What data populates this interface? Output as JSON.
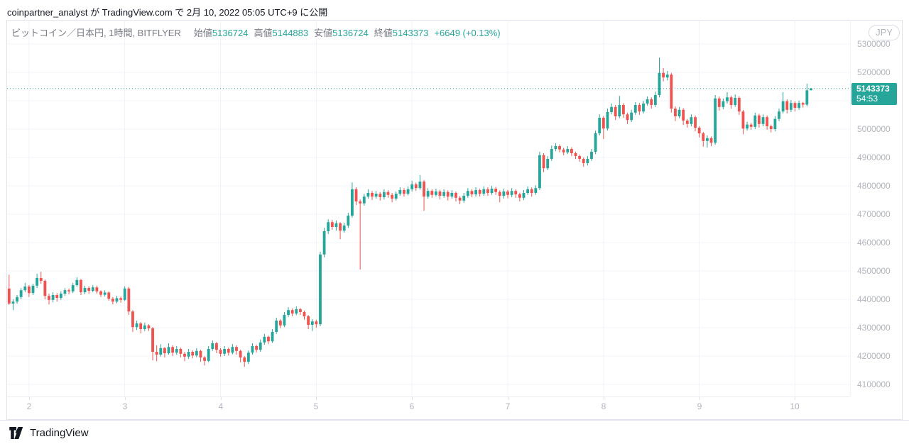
{
  "attribution": "coinpartner_analyst が TradingView.com で 2月 10, 2022 05:05 UTC+9 に公開",
  "legend": {
    "title": "ビットコイン／日本円, 1時間, BITFLYER",
    "fields": [
      {
        "label": "始値",
        "value": "5136724"
      },
      {
        "label": "高値",
        "value": "5144883"
      },
      {
        "label": "安値",
        "value": "5136724"
      },
      {
        "label": "終値",
        "value": "5143373"
      }
    ],
    "change": "+6649 (+0.13%)"
  },
  "price_scale": {
    "currency": "JPY",
    "last": {
      "price": "5143373",
      "countdown": "54:53"
    }
  },
  "footer": {
    "brand": "TradingView"
  },
  "colors": {
    "up": "#26a69a",
    "down": "#ef5350",
    "grid": "#f0f3fa",
    "axis_text": "#b2b5be",
    "frame": "#e0e3eb",
    "label_bg": "#26a69a",
    "text_dark": "#131722",
    "text_gray": "#787b86"
  },
  "chart_data": {
    "type": "candlestick",
    "title": "ビットコイン／日本円, 1時間, BITFLYER",
    "symbol": "ビットコイン／日本円",
    "interval": "1時間",
    "exchange": "BITFLYER",
    "ylabel": "JPY",
    "ohlc_current": {
      "open": 5136724,
      "high": 5144883,
      "low": 5136724,
      "close": 5143373,
      "change": 6649,
      "change_pct": 0.13
    },
    "last_price": 5143373,
    "ylim": [
      4057500,
      5385000
    ],
    "yticks": [
      4100000,
      4200000,
      4300000,
      4400000,
      4500000,
      4600000,
      4700000,
      4800000,
      4900000,
      5000000,
      5100000,
      5200000,
      5300000
    ],
    "xticks_days": [
      "2",
      "3",
      "4",
      "5",
      "6",
      "7",
      "8",
      "9",
      "10"
    ],
    "layout": {
      "bars_per_day": 24,
      "first_day_bar": 5,
      "right_pad_bars": 9.3,
      "grid": true
    },
    "candles": [
      [
        4438000,
        4487000,
        4380000,
        4385000
      ],
      [
        4385000,
        4400000,
        4362000,
        4392000
      ],
      [
        4392000,
        4415000,
        4385000,
        4408000
      ],
      [
        4408000,
        4440000,
        4400000,
        4432000
      ],
      [
        4432000,
        4458000,
        4425000,
        4445000
      ],
      [
        4445000,
        4450000,
        4408000,
        4422000
      ],
      [
        4422000,
        4455000,
        4415000,
        4448000
      ],
      [
        4448000,
        4490000,
        4440000,
        4475000
      ],
      [
        4475000,
        4497000,
        4455000,
        4465000
      ],
      [
        4465000,
        4470000,
        4400000,
        4412000
      ],
      [
        4412000,
        4420000,
        4382000,
        4398000
      ],
      [
        4398000,
        4425000,
        4390000,
        4415000
      ],
      [
        4415000,
        4422000,
        4392000,
        4405000
      ],
      [
        4405000,
        4428000,
        4398000,
        4420000
      ],
      [
        4420000,
        4440000,
        4412000,
        4432000
      ],
      [
        4432000,
        4438000,
        4418000,
        4428000
      ],
      [
        4428000,
        4458000,
        4422000,
        4450000
      ],
      [
        4450000,
        4478000,
        4445000,
        4468000
      ],
      [
        4468000,
        4472000,
        4415000,
        4425000
      ],
      [
        4425000,
        4448000,
        4418000,
        4440000
      ],
      [
        4440000,
        4446000,
        4420000,
        4430000
      ],
      [
        4430000,
        4450000,
        4425000,
        4442000
      ],
      [
        4442000,
        4448000,
        4420000,
        4428000
      ],
      [
        4428000,
        4432000,
        4408000,
        4416000
      ],
      [
        4416000,
        4432000,
        4410000,
        4424000
      ],
      [
        4424000,
        4428000,
        4395000,
        4402000
      ],
      [
        4402000,
        4408000,
        4382000,
        4392000
      ],
      [
        4392000,
        4412000,
        4386000,
        4404000
      ],
      [
        4404000,
        4410000,
        4388000,
        4398000
      ],
      [
        4398000,
        4446000,
        4394000,
        4438000
      ],
      [
        4438000,
        4444000,
        4345000,
        4357000
      ],
      [
        4357000,
        4362000,
        4285000,
        4302000
      ],
      [
        4302000,
        4325000,
        4292000,
        4315000
      ],
      [
        4315000,
        4320000,
        4280000,
        4295000
      ],
      [
        4295000,
        4318000,
        4288000,
        4308000
      ],
      [
        4308000,
        4312000,
        4288000,
        4298000
      ],
      [
        4298000,
        4302000,
        4185000,
        4215000
      ],
      [
        4215000,
        4238000,
        4182000,
        4205000
      ],
      [
        4205000,
        4242000,
        4198000,
        4228000
      ],
      [
        4228000,
        4232000,
        4195000,
        4210000
      ],
      [
        4210000,
        4245000,
        4205000,
        4232000
      ],
      [
        4232000,
        4238000,
        4200000,
        4212000
      ],
      [
        4212000,
        4235000,
        4205000,
        4225000
      ],
      [
        4225000,
        4230000,
        4195000,
        4208000
      ],
      [
        4208000,
        4215000,
        4182000,
        4198000
      ],
      [
        4198000,
        4225000,
        4190000,
        4215000
      ],
      [
        4215000,
        4220000,
        4192000,
        4202000
      ],
      [
        4202000,
        4228000,
        4196000,
        4218000
      ],
      [
        4218000,
        4222000,
        4180000,
        4195000
      ],
      [
        4195000,
        4200000,
        4167000,
        4183000
      ],
      [
        4183000,
        4235000,
        4178000,
        4225000
      ],
      [
        4225000,
        4255000,
        4218000,
        4245000
      ],
      [
        4245000,
        4250000,
        4210000,
        4222000
      ],
      [
        4222000,
        4228000,
        4198000,
        4208000
      ],
      [
        4208000,
        4235000,
        4200000,
        4225000
      ],
      [
        4225000,
        4230000,
        4202000,
        4212000
      ],
      [
        4212000,
        4242000,
        4206000,
        4232000
      ],
      [
        4232000,
        4238000,
        4205000,
        4218000
      ],
      [
        4218000,
        4222000,
        4178000,
        4195000
      ],
      [
        4195000,
        4200000,
        4162000,
        4180000
      ],
      [
        4180000,
        4220000,
        4172000,
        4212000
      ],
      [
        4212000,
        4245000,
        4205000,
        4235000
      ],
      [
        4235000,
        4240000,
        4212000,
        4222000
      ],
      [
        4222000,
        4258000,
        4215000,
        4248000
      ],
      [
        4248000,
        4278000,
        4240000,
        4268000
      ],
      [
        4268000,
        4272000,
        4242000,
        4252000
      ],
      [
        4252000,
        4295000,
        4246000,
        4285000
      ],
      [
        4285000,
        4335000,
        4278000,
        4325000
      ],
      [
        4325000,
        4330000,
        4298000,
        4308000
      ],
      [
        4308000,
        4355000,
        4302000,
        4345000
      ],
      [
        4345000,
        4372000,
        4338000,
        4362000
      ],
      [
        4362000,
        4368000,
        4340000,
        4350000
      ],
      [
        4350000,
        4375000,
        4344000,
        4365000
      ],
      [
        4365000,
        4370000,
        4345000,
        4355000
      ],
      [
        4355000,
        4360000,
        4328000,
        4340000
      ],
      [
        4340000,
        4345000,
        4295000,
        4310000
      ],
      [
        4310000,
        4330000,
        4288000,
        4322000
      ],
      [
        4322000,
        4328000,
        4300000,
        4312000
      ],
      [
        4312000,
        4568000,
        4305000,
        4558000
      ],
      [
        4558000,
        4652000,
        4548000,
        4640000
      ],
      [
        4640000,
        4682000,
        4630000,
        4672000
      ],
      [
        4672000,
        4680000,
        4645000,
        4655000
      ],
      [
        4655000,
        4678000,
        4642000,
        4668000
      ],
      [
        4668000,
        4672000,
        4612000,
        4642000
      ],
      [
        4642000,
        4670000,
        4635000,
        4660000
      ],
      [
        4660000,
        4705000,
        4652000,
        4695000
      ],
      [
        4695000,
        4812000,
        4688000,
        4788000
      ],
      [
        4788000,
        4795000,
        4732000,
        4745000
      ],
      [
        4745000,
        4752000,
        4505000,
        4738000
      ],
      [
        4738000,
        4772000,
        4730000,
        4762000
      ],
      [
        4762000,
        4788000,
        4755000,
        4775000
      ],
      [
        4775000,
        4782000,
        4750000,
        4762000
      ],
      [
        4762000,
        4782000,
        4755000,
        4772000
      ],
      [
        4772000,
        4778000,
        4748000,
        4760000
      ],
      [
        4760000,
        4788000,
        4752000,
        4778000
      ],
      [
        4778000,
        4785000,
        4758000,
        4768000
      ],
      [
        4768000,
        4775000,
        4742000,
        4755000
      ],
      [
        4755000,
        4780000,
        4748000,
        4772000
      ],
      [
        4772000,
        4795000,
        4765000,
        4785000
      ],
      [
        4785000,
        4792000,
        4762000,
        4772000
      ],
      [
        4772000,
        4798000,
        4766000,
        4788000
      ],
      [
        4788000,
        4818000,
        4780000,
        4805000
      ],
      [
        4805000,
        4812000,
        4782000,
        4792000
      ],
      [
        4792000,
        4838000,
        4786000,
        4815000
      ],
      [
        4815000,
        4820000,
        4712000,
        4762000
      ],
      [
        4762000,
        4792000,
        4755000,
        4782000
      ],
      [
        4782000,
        4788000,
        4758000,
        4768000
      ],
      [
        4768000,
        4790000,
        4762000,
        4780000
      ],
      [
        4780000,
        4786000,
        4752000,
        4765000
      ],
      [
        4765000,
        4788000,
        4758000,
        4778000
      ],
      [
        4778000,
        4784000,
        4748000,
        4762000
      ],
      [
        4762000,
        4785000,
        4755000,
        4775000
      ],
      [
        4775000,
        4780000,
        4745000,
        4758000
      ],
      [
        4758000,
        4764000,
        4735000,
        4748000
      ],
      [
        4748000,
        4775000,
        4740000,
        4765000
      ],
      [
        4765000,
        4792000,
        4758000,
        4782000
      ],
      [
        4782000,
        4788000,
        4760000,
        4770000
      ],
      [
        4770000,
        4795000,
        4762000,
        4785000
      ],
      [
        4785000,
        4790000,
        4762000,
        4772000
      ],
      [
        4772000,
        4798000,
        4765000,
        4788000
      ],
      [
        4788000,
        4795000,
        4765000,
        4775000
      ],
      [
        4775000,
        4800000,
        4768000,
        4790000
      ],
      [
        4790000,
        4796000,
        4768000,
        4778000
      ],
      [
        4778000,
        4784000,
        4742000,
        4765000
      ],
      [
        4765000,
        4790000,
        4755000,
        4780000
      ],
      [
        4780000,
        4786000,
        4756000,
        4768000
      ],
      [
        4768000,
        4792000,
        4760000,
        4782000
      ],
      [
        4782000,
        4788000,
        4758000,
        4770000
      ],
      [
        4770000,
        4776000,
        4745000,
        4758000
      ],
      [
        4758000,
        4785000,
        4750000,
        4775000
      ],
      [
        4775000,
        4798000,
        4768000,
        4788000
      ],
      [
        4788000,
        4794000,
        4762000,
        4775000
      ],
      [
        4775000,
        4802000,
        4768000,
        4792000
      ],
      [
        4792000,
        4920000,
        4785000,
        4908000
      ],
      [
        4908000,
        4915000,
        4848000,
        4862000
      ],
      [
        4862000,
        4905000,
        4855000,
        4895000
      ],
      [
        4895000,
        4942000,
        4888000,
        4930000
      ],
      [
        4930000,
        4950000,
        4922000,
        4940000
      ],
      [
        4940000,
        4946000,
        4918000,
        4928000
      ],
      [
        4928000,
        4934000,
        4908000,
        4918000
      ],
      [
        4918000,
        4940000,
        4912000,
        4930000
      ],
      [
        4930000,
        4936000,
        4905000,
        4915000
      ],
      [
        4915000,
        4920000,
        4895000,
        4905000
      ],
      [
        4905000,
        4910000,
        4885000,
        4895000
      ],
      [
        4895000,
        4900000,
        4867000,
        4880000
      ],
      [
        4880000,
        4905000,
        4872000,
        4895000
      ],
      [
        4895000,
        4930000,
        4888000,
        4920000
      ],
      [
        4920000,
        4995000,
        4912000,
        4985000
      ],
      [
        4985000,
        5052000,
        4978000,
        5040000
      ],
      [
        5040000,
        5046000,
        4965000,
        5002000
      ],
      [
        5002000,
        5072000,
        4995000,
        5060000
      ],
      [
        5060000,
        5090000,
        5052000,
        5078000
      ],
      [
        5078000,
        5085000,
        5032000,
        5045000
      ],
      [
        5045000,
        5117000,
        5038000,
        5085000
      ],
      [
        5085000,
        5092000,
        5040000,
        5052000
      ],
      [
        5052000,
        5058000,
        5018000,
        5032000
      ],
      [
        5032000,
        5068000,
        5025000,
        5058000
      ],
      [
        5058000,
        5095000,
        5050000,
        5085000
      ],
      [
        5085000,
        5092000,
        5050000,
        5062000
      ],
      [
        5062000,
        5100000,
        5055000,
        5090000
      ],
      [
        5090000,
        5115000,
        5082000,
        5105000
      ],
      [
        5105000,
        5112000,
        5072000,
        5085000
      ],
      [
        5085000,
        5132000,
        5078000,
        5120000
      ],
      [
        5120000,
        5252000,
        5112000,
        5198000
      ],
      [
        5198000,
        5215000,
        5168000,
        5182000
      ],
      [
        5182000,
        5205000,
        5172000,
        5192000
      ],
      [
        5192000,
        5198000,
        5058000,
        5072000
      ],
      [
        5072000,
        5080000,
        5028000,
        5045000
      ],
      [
        5045000,
        5078000,
        5038000,
        5068000
      ],
      [
        5068000,
        5074000,
        5015000,
        5030000
      ],
      [
        5030000,
        5036000,
        5005000,
        5018000
      ],
      [
        5018000,
        5052000,
        5010000,
        5042000
      ],
      [
        5042000,
        5048000,
        4992000,
        5005000
      ],
      [
        5005000,
        5010000,
        4970000,
        4985000
      ],
      [
        4985000,
        4990000,
        4938000,
        4958000
      ],
      [
        4958000,
        4978000,
        4935000,
        4968000
      ],
      [
        4968000,
        4974000,
        4940000,
        4952000
      ],
      [
        4952000,
        5120000,
        4945000,
        5108000
      ],
      [
        5108000,
        5115000,
        5065000,
        5078000
      ],
      [
        5078000,
        5108000,
        5070000,
        5098000
      ],
      [
        5098000,
        5130000,
        5090000,
        5112000
      ],
      [
        5112000,
        5118000,
        5072000,
        5085000
      ],
      [
        5085000,
        5122000,
        5078000,
        5110000
      ],
      [
        5110000,
        5116000,
        5050000,
        5062000
      ],
      [
        5062000,
        5068000,
        4982000,
        5002000
      ],
      [
        5002000,
        5026000,
        4995000,
        5016000
      ],
      [
        5016000,
        5022000,
        4998000,
        5008000
      ],
      [
        5008000,
        5058000,
        5000000,
        5048000
      ],
      [
        5048000,
        5054000,
        5005000,
        5018000
      ],
      [
        5018000,
        5052000,
        5010000,
        5042000
      ],
      [
        5042000,
        5048000,
        4998000,
        5010000
      ],
      [
        5010000,
        5016000,
        4988000,
        5000000
      ],
      [
        5000000,
        5046000,
        4992000,
        5036000
      ],
      [
        5036000,
        5072000,
        5028000,
        5062000
      ],
      [
        5062000,
        5130000,
        5055000,
        5098000
      ],
      [
        5098000,
        5105000,
        5055000,
        5068000
      ],
      [
        5068000,
        5102000,
        5060000,
        5092000
      ],
      [
        5092000,
        5098000,
        5062000,
        5075000
      ],
      [
        5075000,
        5100000,
        5068000,
        5092000
      ],
      [
        5092000,
        5096000,
        5076000,
        5086000
      ],
      [
        5086000,
        5160000,
        5080000,
        5136724
      ],
      [
        5136724,
        5144883,
        5136724,
        5143373
      ]
    ]
  }
}
